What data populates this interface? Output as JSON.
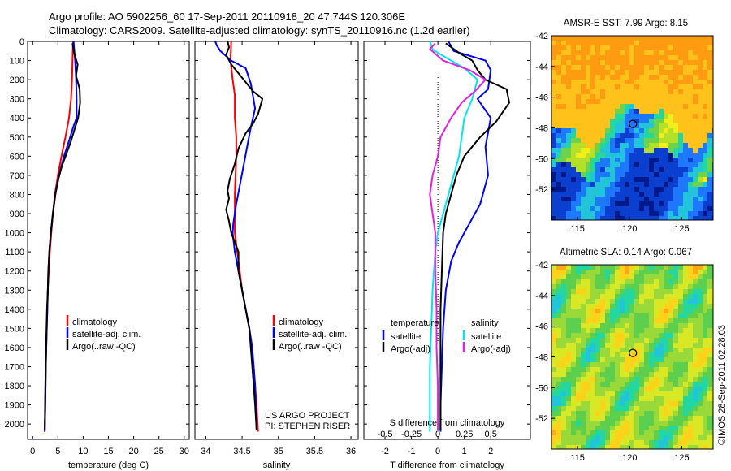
{
  "header": {
    "title_line1": "Argo profile: AO 5902256_60 17-Sep-2011 20110918_20 47.744S 120.306E",
    "title_line2": "Climatology: CARS2009. Satellite-adjusted climatology: synTS_20110916.nc (1.2d earlier)"
  },
  "colors": {
    "climatology": "#ff0000",
    "satellite": "#0000ff",
    "argo": "#000000",
    "cyan": "#00e5ee",
    "magenta": "#e020e0"
  },
  "depth_axis": {
    "ticks": [
      0,
      100,
      200,
      300,
      400,
      500,
      600,
      700,
      800,
      900,
      1000,
      1100,
      1200,
      1300,
      1400,
      1500,
      1600,
      1700,
      1800,
      1900,
      2000
    ],
    "ylim": [
      0,
      2080
    ]
  },
  "chart_data": [
    {
      "type": "line",
      "panel": "temperature",
      "xlabel": "temperature (deg C)",
      "xlim": [
        -1,
        31
      ],
      "xticks": [
        0,
        5,
        10,
        15,
        20,
        25,
        30
      ],
      "xticklabels": [
        "0",
        "5",
        "10",
        "15",
        "20",
        "25",
        "30"
      ],
      "legend": [
        "climatology",
        "satellite-adj. clim.",
        "Argo(..raw -QC)"
      ],
      "series": [
        {
          "name": "climatology",
          "color": "#ff0000",
          "points": [
            [
              8.0,
              0
            ],
            [
              7.9,
              100
            ],
            [
              7.8,
              200
            ],
            [
              7.6,
              300
            ],
            [
              7.2,
              400
            ],
            [
              6.5,
              500
            ],
            [
              5.7,
              600
            ],
            [
              5.0,
              700
            ],
            [
              4.4,
              800
            ],
            [
              4.0,
              900
            ],
            [
              3.7,
              1000
            ],
            [
              3.4,
              1100
            ],
            [
              3.2,
              1200
            ],
            [
              3.0,
              1300
            ],
            [
              2.9,
              1400
            ],
            [
              2.8,
              1500
            ],
            [
              2.7,
              1600
            ],
            [
              2.6,
              1700
            ],
            [
              2.55,
              1800
            ],
            [
              2.5,
              1900
            ],
            [
              2.4,
              2040
            ]
          ]
        },
        {
          "name": "satellite-adj. clim.",
          "color": "#0000ff",
          "points": [
            [
              8.1,
              0
            ],
            [
              8.4,
              100
            ],
            [
              8.6,
              200
            ],
            [
              8.7,
              300
            ],
            [
              8.7,
              400
            ],
            [
              8.0,
              450
            ],
            [
              7.2,
              520
            ],
            [
              6.2,
              600
            ],
            [
              5.4,
              680
            ],
            [
              4.6,
              780
            ],
            [
              4.0,
              900
            ],
            [
              3.6,
              1000
            ],
            [
              3.3,
              1100
            ],
            [
              3.1,
              1200
            ],
            [
              3.0,
              1300
            ],
            [
              2.9,
              1400
            ],
            [
              2.8,
              1500
            ],
            [
              2.7,
              1600
            ],
            [
              2.6,
              1700
            ],
            [
              2.55,
              1800
            ],
            [
              2.5,
              1900
            ],
            [
              2.4,
              2040
            ]
          ]
        },
        {
          "name": "Argo(..raw -QC)",
          "color": "#000000",
          "points": [
            [
              7.9,
              10
            ],
            [
              8.2,
              60
            ],
            [
              8.9,
              120
            ],
            [
              8.6,
              180
            ],
            [
              9.3,
              250
            ],
            [
              9.4,
              320
            ],
            [
              9.0,
              400
            ],
            [
              8.4,
              450
            ],
            [
              7.6,
              520
            ],
            [
              6.8,
              580
            ],
            [
              5.8,
              650
            ],
            [
              5.1,
              720
            ],
            [
              4.5,
              800
            ],
            [
              4.0,
              900
            ],
            [
              3.6,
              1000
            ],
            [
              3.3,
              1100
            ],
            [
              3.1,
              1200
            ],
            [
              3.0,
              1300
            ],
            [
              2.85,
              1400
            ],
            [
              2.75,
              1500
            ],
            [
              2.65,
              1600
            ],
            [
              2.6,
              1700
            ],
            [
              2.5,
              1800
            ],
            [
              2.45,
              1900
            ],
            [
              2.4,
              2030
            ]
          ]
        }
      ]
    },
    {
      "type": "line",
      "panel": "salinity",
      "xlabel": "salinity",
      "xlim": [
        33.85,
        36.1
      ],
      "xticks": [
        34,
        34.5,
        35,
        35.5,
        36
      ],
      "xticklabels": [
        "34",
        "34.5",
        "35",
        "35.5",
        "36"
      ],
      "legend": [
        "climatology",
        "satellite-adj. clim.",
        "Argo(..raw -QC)"
      ],
      "credits": [
        "US ARGO PROJECT",
        "PI: STEPHEN RISER"
      ],
      "series": [
        {
          "name": "climatology",
          "color": "#ff0000",
          "points": [
            [
              34.35,
              0
            ],
            [
              34.34,
              100
            ],
            [
              34.37,
              200
            ],
            [
              34.4,
              280
            ],
            [
              34.4,
              400
            ],
            [
              34.42,
              500
            ],
            [
              34.42,
              600
            ],
            [
              34.41,
              700
            ],
            [
              34.4,
              800
            ],
            [
              34.4,
              900
            ],
            [
              34.4,
              1000
            ],
            [
              34.45,
              1150
            ],
            [
              34.5,
              1300
            ],
            [
              34.55,
              1400
            ],
            [
              34.6,
              1500
            ],
            [
              34.63,
              1600
            ],
            [
              34.66,
              1700
            ],
            [
              34.68,
              1800
            ],
            [
              34.7,
              1900
            ],
            [
              34.72,
              2040
            ]
          ]
        },
        {
          "name": "satellite-adj. clim.",
          "color": "#0000ff",
          "points": [
            [
              34.13,
              0
            ],
            [
              34.15,
              20
            ],
            [
              34.2,
              50
            ],
            [
              34.35,
              100
            ],
            [
              34.55,
              140
            ],
            [
              34.62,
              220
            ],
            [
              34.68,
              350
            ],
            [
              34.62,
              450
            ],
            [
              34.57,
              550
            ],
            [
              34.52,
              650
            ],
            [
              34.47,
              750
            ],
            [
              34.42,
              850
            ],
            [
              34.38,
              950
            ],
            [
              34.37,
              1000
            ],
            [
              34.4,
              1100
            ],
            [
              34.45,
              1200
            ],
            [
              34.5,
              1300
            ],
            [
              34.55,
              1400
            ],
            [
              34.6,
              1500
            ],
            [
              34.64,
              1600
            ],
            [
              34.66,
              1700
            ],
            [
              34.68,
              1800
            ],
            [
              34.69,
              1900
            ],
            [
              34.7,
              2030
            ]
          ]
        },
        {
          "name": "Argo(..raw -QC)",
          "color": "#000000",
          "points": [
            [
              34.3,
              0
            ],
            [
              34.32,
              30
            ],
            [
              34.28,
              70
            ],
            [
              34.35,
              120
            ],
            [
              34.5,
              190
            ],
            [
              34.65,
              260
            ],
            [
              34.78,
              300
            ],
            [
              34.72,
              380
            ],
            [
              34.65,
              430
            ],
            [
              34.55,
              480
            ],
            [
              34.45,
              560
            ],
            [
              34.4,
              640
            ],
            [
              34.33,
              720
            ],
            [
              34.3,
              780
            ],
            [
              34.32,
              820
            ],
            [
              34.28,
              880
            ],
            [
              34.32,
              940
            ],
            [
              34.35,
              1000
            ],
            [
              34.45,
              1100
            ],
            [
              34.45,
              1200
            ],
            [
              34.5,
              1300
            ],
            [
              34.55,
              1400
            ],
            [
              34.6,
              1500
            ],
            [
              34.62,
              1600
            ],
            [
              34.64,
              1700
            ],
            [
              34.66,
              1800
            ],
            [
              34.68,
              1900
            ],
            [
              34.7,
              2030
            ]
          ]
        }
      ]
    },
    {
      "type": "line",
      "panel": "difference",
      "xlabel": "T difference from climatology",
      "xlabel_top": "S difference from climatology",
      "xlim": [
        -2.8,
        3.5
      ],
      "xticks": [
        -2,
        -1,
        0,
        1,
        2
      ],
      "xticklabels": [
        "-2",
        "-1",
        "0",
        "1",
        "2"
      ],
      "s_ticklabels": [
        "-0.5",
        "-0.25",
        "0",
        "0.25",
        "0.5"
      ],
      "legend_groups": [
        {
          "heading": "temperature",
          "entries": [
            "satellite",
            "Argo(-adj)"
          ]
        },
        {
          "heading": "salinity",
          "entries": [
            "satellite",
            "Argo(-adj)"
          ]
        }
      ],
      "series": [
        {
          "name": "satellite",
          "group": "temperature",
          "color": "#0000ff",
          "points": [
            [
              0.4,
              0
            ],
            [
              0.6,
              50
            ],
            [
              1.8,
              100
            ],
            [
              2.0,
              150
            ],
            [
              1.9,
              250
            ],
            [
              1.5,
              300
            ],
            [
              2.0,
              400
            ],
            [
              1.8,
              550
            ],
            [
              1.9,
              700
            ],
            [
              1.6,
              850
            ],
            [
              1.2,
              950
            ],
            [
              0.8,
              1050
            ],
            [
              0.5,
              1150
            ],
            [
              0.3,
              1300
            ],
            [
              0.2,
              1500
            ],
            [
              0.15,
              1700
            ],
            [
              0.1,
              1900
            ],
            [
              0.1,
              2040
            ]
          ]
        },
        {
          "name": "Argo(-adj)",
          "group": "temperature",
          "color": "#000000",
          "points": [
            [
              0.3,
              10
            ],
            [
              0.8,
              60
            ],
            [
              1.3,
              100
            ],
            [
              1.5,
              150
            ],
            [
              1.8,
              200
            ],
            [
              2.6,
              250
            ],
            [
              2.7,
              320
            ],
            [
              2.2,
              420
            ],
            [
              1.6,
              500
            ],
            [
              1.0,
              600
            ],
            [
              0.7,
              700
            ],
            [
              0.5,
              800
            ],
            [
              0.3,
              900
            ],
            [
              0.2,
              1000
            ],
            [
              0.15,
              1200
            ],
            [
              0.1,
              1400
            ],
            [
              0.1,
              1600
            ],
            [
              0.1,
              1800
            ],
            [
              0.1,
              2030
            ]
          ]
        },
        {
          "name": "satellite",
          "group": "salinity",
          "color": "#00e5ee",
          "points": [
            [
              -0.3,
              0
            ],
            [
              -0.2,
              40
            ],
            [
              0.0,
              60
            ],
            [
              1.0,
              140
            ],
            [
              1.5,
              200
            ],
            [
              1.3,
              300
            ],
            [
              1.0,
              400
            ],
            [
              0.9,
              500
            ],
            [
              0.8,
              600
            ],
            [
              0.6,
              700
            ],
            [
              0.4,
              800
            ],
            [
              0.2,
              900
            ],
            [
              0.0,
              1000
            ],
            [
              -0.1,
              1100
            ],
            [
              -0.2,
              1300
            ],
            [
              -0.25,
              1500
            ],
            [
              -0.3,
              1700
            ],
            [
              -0.3,
              1900
            ],
            [
              -0.3,
              2040
            ]
          ]
        },
        {
          "name": "Argo(-adj)",
          "group": "salinity",
          "color": "#e020e0",
          "points": [
            [
              -0.1,
              10
            ],
            [
              -0.3,
              40
            ],
            [
              0.2,
              100
            ],
            [
              1.2,
              150
            ],
            [
              1.8,
              200
            ],
            [
              1.4,
              260
            ],
            [
              0.9,
              320
            ],
            [
              0.5,
              400
            ],
            [
              0.1,
              500
            ],
            [
              0.0,
              600
            ],
            [
              -0.2,
              700
            ],
            [
              -0.3,
              800
            ],
            [
              -0.2,
              900
            ],
            [
              -0.1,
              1000
            ],
            [
              -0.1,
              1200
            ],
            [
              -0.05,
              1400
            ],
            [
              -0.05,
              1600
            ],
            [
              0.0,
              1800
            ],
            [
              0.0,
              2030
            ]
          ]
        }
      ]
    },
    {
      "type": "heatmap",
      "panel": "sst_map",
      "title": "AMSR-E SST: 7.99 Argo: 8.15",
      "xlim": [
        112.5,
        128
      ],
      "ylim": [
        -54,
        -42
      ],
      "xticks": [
        115,
        120,
        125
      ],
      "yticks": [
        -42,
        -44,
        -46,
        -48,
        -50,
        -52
      ],
      "marker": {
        "lon": 120.306,
        "lat": -47.744
      },
      "palette": [
        "#001a8c",
        "#0a3fd0",
        "#1e78ff",
        "#21c4d9",
        "#23d8a0",
        "#6fd24b",
        "#b4e02a",
        "#f3ed19",
        "#ffc21a",
        "#ff9b10"
      ]
    },
    {
      "type": "heatmap",
      "panel": "sla_map",
      "title": "Altimetric SLA: 0.14 Argo: 0.067",
      "xlim": [
        112.5,
        128
      ],
      "ylim": [
        -54,
        -42
      ],
      "xticks": [
        115,
        120,
        125
      ],
      "yticks": [
        -42,
        -44,
        -46,
        -48,
        -50,
        -52
      ],
      "marker": {
        "lon": 120.306,
        "lat": -47.744
      },
      "palette": [
        "#1e78ff",
        "#21c4d9",
        "#23d8a0",
        "#5ccf4e",
        "#9ad93a",
        "#d9e825",
        "#ffd21a",
        "#ffaa14"
      ]
    }
  ],
  "footer": {
    "credit": "©IMOS 28-Sep-2011 02:28:03"
  }
}
